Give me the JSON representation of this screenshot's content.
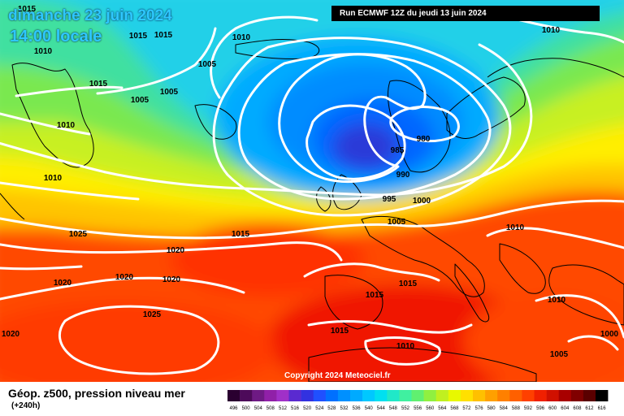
{
  "header": {
    "date": "dimanche 23 juin 2024",
    "time": "14:00 locale",
    "run": "Run ECMWF 12Z du jeudi 13 juin 2024"
  },
  "footer": {
    "title": "Géop. z500, pression niveau mer",
    "subtitle": "(+240h)",
    "copyright": "Copyright 2024 Meteociel.fr"
  },
  "isobar_labels": [
    {
      "text": "1015"
    },
    {
      "text": "1015"
    },
    {
      "text": "1015"
    },
    {
      "text": "1010"
    },
    {
      "text": "1010"
    },
    {
      "text": "1005"
    },
    {
      "text": "1015"
    },
    {
      "text": "1005"
    },
    {
      "text": "1005"
    },
    {
      "text": "1010"
    },
    {
      "text": "1010"
    },
    {
      "text": "1010"
    },
    {
      "text": "1025"
    },
    {
      "text": "1015"
    },
    {
      "text": "1020"
    },
    {
      "text": "1020"
    },
    {
      "text": "1020"
    },
    {
      "text": "1020"
    },
    {
      "text": "1025"
    },
    {
      "text": "1020"
    },
    {
      "text": "985"
    },
    {
      "text": "980"
    },
    {
      "text": "990"
    },
    {
      "text": "995"
    },
    {
      "text": "1000"
    },
    {
      "text": "1005"
    },
    {
      "text": "1010"
    },
    {
      "text": "1015"
    },
    {
      "text": "1015"
    },
    {
      "text": "1015"
    },
    {
      "text": "1010"
    },
    {
      "text": "1000"
    },
    {
      "text": "1005"
    },
    {
      "text": "1010"
    }
  ],
  "legend": {
    "labels": [
      "496",
      "500",
      "504",
      "508",
      "512",
      "516",
      "520",
      "524",
      "528",
      "532",
      "536",
      "540",
      "544",
      "548",
      "552",
      "556",
      "560",
      "564",
      "568",
      "572",
      "576",
      "580",
      "584",
      "588",
      "592",
      "596",
      "600",
      "604",
      "608",
      "612",
      "616"
    ],
    "colors": [
      "#2a0030",
      "#4d0a5a",
      "#6e1a84",
      "#9020a8",
      "#a030c8",
      "#5a2ad0",
      "#3232e0",
      "#2050ff",
      "#0070ff",
      "#0090ff",
      "#00aaff",
      "#00c8ff",
      "#00e0f0",
      "#20e8c8",
      "#40f0a0",
      "#60f070",
      "#90f040",
      "#c0f020",
      "#e8f800",
      "#ffe000",
      "#ffc000",
      "#ffa000",
      "#ff8000",
      "#ff6000",
      "#ff4000",
      "#f02000",
      "#d01000",
      "#a80000",
      "#800000",
      "#5a0000",
      "#000000"
    ]
  }
}
